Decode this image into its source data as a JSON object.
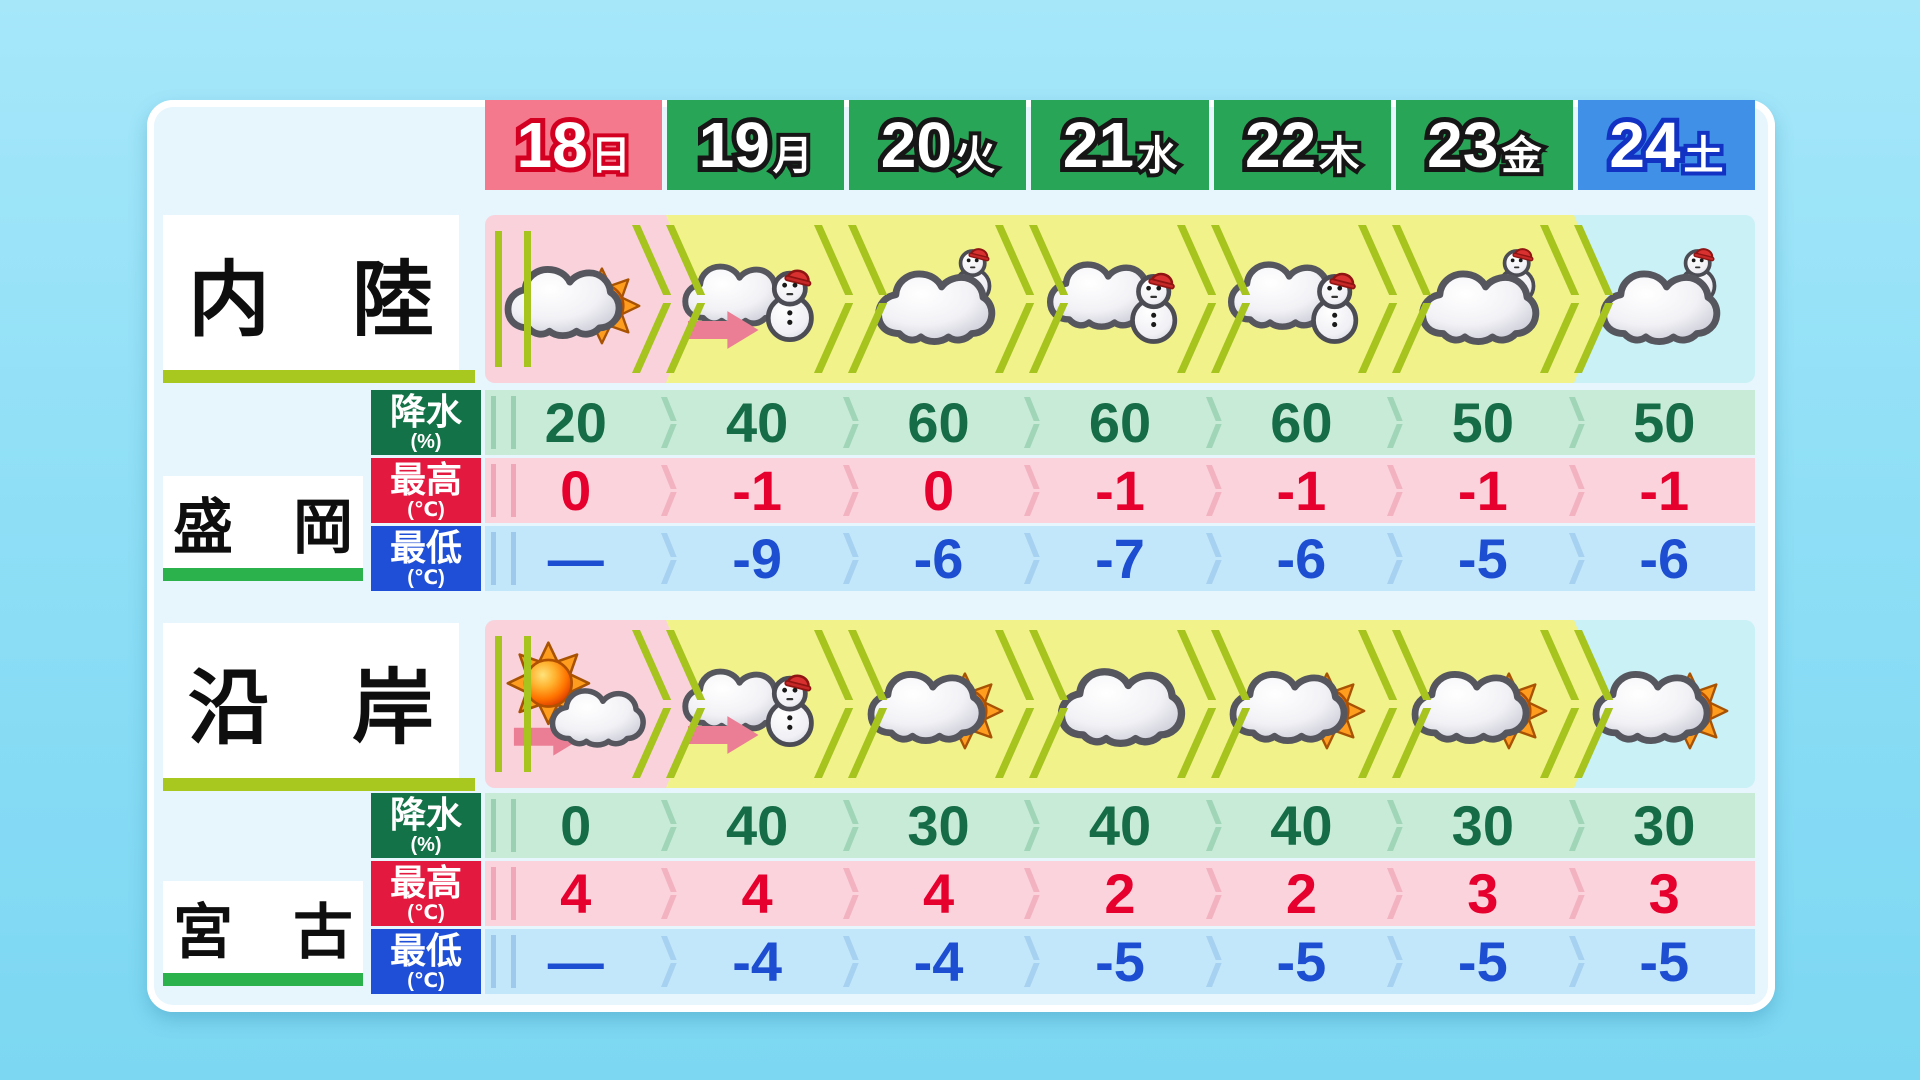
{
  "header": {
    "days": [
      {
        "date": "18",
        "dow": "日",
        "kind": "sunday"
      },
      {
        "date": "19",
        "dow": "月",
        "kind": "weekday"
      },
      {
        "date": "20",
        "dow": "火",
        "kind": "weekday"
      },
      {
        "date": "21",
        "dow": "水",
        "kind": "weekday"
      },
      {
        "date": "22",
        "dow": "木",
        "kind": "weekday"
      },
      {
        "date": "23",
        "dow": "金",
        "kind": "weekday"
      },
      {
        "date": "24",
        "dow": "土",
        "kind": "saturday"
      }
    ]
  },
  "sections": [
    {
      "region": "内　陸",
      "city": "盛　岡",
      "icons": [
        {
          "name": "cloud-then-sun",
          "type": "cloud-sun"
        },
        {
          "name": "cloud-later-snow",
          "type": "cloud-snowman-arrow"
        },
        {
          "name": "cloud-with-snow",
          "type": "cloud-snowman-top"
        },
        {
          "name": "cloud-with-snow",
          "type": "cloud-snowman-front"
        },
        {
          "name": "cloud-with-snow",
          "type": "cloud-snowman-front"
        },
        {
          "name": "cloud-with-snow",
          "type": "cloud-snowman-top"
        },
        {
          "name": "cloud-with-snow",
          "type": "cloud-snowman-top"
        }
      ],
      "rows": [
        {
          "label": "降水",
          "unit": "(%)",
          "values": [
            "20",
            "40",
            "60",
            "60",
            "60",
            "50",
            "50"
          ]
        },
        {
          "label": "最高",
          "unit": "(℃)",
          "values": [
            "0",
            "-1",
            "0",
            "-1",
            "-1",
            "-1",
            "-1"
          ]
        },
        {
          "label": "最低",
          "unit": "(℃)",
          "values": [
            "—",
            "-9",
            "-6",
            "-7",
            "-6",
            "-5",
            "-6"
          ]
        }
      ]
    },
    {
      "region": "沿　岸",
      "city": "宮　古",
      "icons": [
        {
          "name": "sun-later-cloud",
          "type": "sun-cloud-arrow"
        },
        {
          "name": "cloud-later-snow",
          "type": "cloud-snowman-arrow"
        },
        {
          "name": "cloud-partly-sun",
          "type": "cloud-sun"
        },
        {
          "name": "cloud",
          "type": "cloud"
        },
        {
          "name": "cloud-partly-sun",
          "type": "cloud-sun"
        },
        {
          "name": "cloud-partly-sun",
          "type": "cloud-sun"
        },
        {
          "name": "cloud-partly-sun",
          "type": "cloud-sun"
        }
      ],
      "rows": [
        {
          "label": "降水",
          "unit": "(%)",
          "values": [
            "0",
            "40",
            "30",
            "40",
            "40",
            "30",
            "30"
          ]
        },
        {
          "label": "最高",
          "unit": "(℃)",
          "values": [
            "4",
            "4",
            "4",
            "2",
            "2",
            "3",
            "3"
          ]
        },
        {
          "label": "最低",
          "unit": "(℃)",
          "values": [
            "—",
            "-4",
            "-4",
            "-5",
            "-5",
            "-5",
            "-5"
          ]
        }
      ]
    }
  ],
  "chart_data": {
    "type": "table",
    "columns": [
      "18日",
      "19月",
      "20火",
      "21水",
      "22木",
      "23金",
      "24土"
    ],
    "rows": [
      {
        "group": "内陸/盛岡",
        "metric": "天気",
        "values": [
          "cloud-sun",
          "cloud-snow-later",
          "cloud-snow",
          "cloud-snow",
          "cloud-snow",
          "cloud-snow",
          "cloud-snow"
        ]
      },
      {
        "group": "内陸/盛岡",
        "metric": "降水(%)",
        "values": [
          20,
          40,
          60,
          60,
          60,
          50,
          50
        ]
      },
      {
        "group": "内陸/盛岡",
        "metric": "最高(℃)",
        "values": [
          0,
          -1,
          0,
          -1,
          -1,
          -1,
          -1
        ]
      },
      {
        "group": "内陸/盛岡",
        "metric": "最低(℃)",
        "values": [
          null,
          -9,
          -6,
          -7,
          -6,
          -5,
          -6
        ]
      },
      {
        "group": "沿岸/宮古",
        "metric": "天気",
        "values": [
          "sun-cloud-later",
          "cloud-snow-later",
          "cloud-sun",
          "cloud",
          "cloud-sun",
          "cloud-sun",
          "cloud-sun"
        ]
      },
      {
        "group": "沿岸/宮古",
        "metric": "降水(%)",
        "values": [
          0,
          40,
          30,
          40,
          40,
          30,
          30
        ]
      },
      {
        "group": "沿岸/宮古",
        "metric": "最高(℃)",
        "values": [
          4,
          4,
          4,
          2,
          2,
          3,
          3
        ]
      },
      {
        "group": "沿岸/宮古",
        "metric": "最低(℃)",
        "values": [
          null,
          -4,
          -4,
          -5,
          -5,
          -5,
          -5
        ]
      }
    ]
  },
  "colors": {
    "background": "#8fdff6",
    "panel": "#e7f5fd",
    "sunday_bg": "#f4798c",
    "weekday_bg": "#28a557",
    "saturday_bg": "#4190e8",
    "today_band": "#fad2dc",
    "midweek_band": "#f1f28a",
    "lastday_band": "#c9f1f6",
    "precip_text": "#156c46",
    "high_text": "#e6002e",
    "low_text": "#1d4ed2",
    "precip_chip": "#137247",
    "high_chip": "#e31940",
    "low_chip": "#1f4fd6",
    "chevron": "#a6c41d",
    "region_underline": "#a9c81f",
    "city_underline": "#2bb24c"
  }
}
